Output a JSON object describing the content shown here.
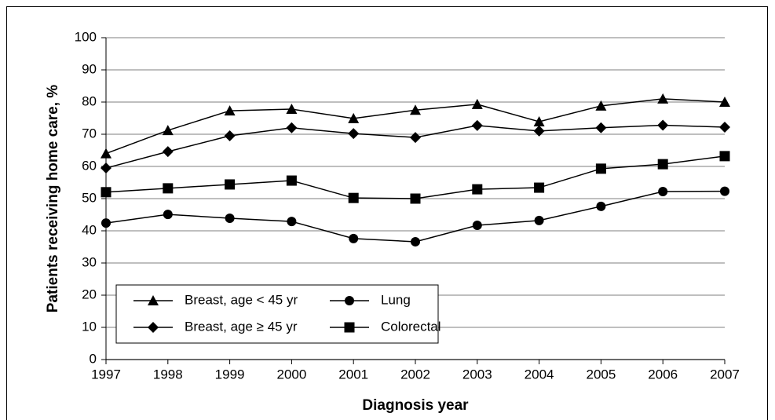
{
  "chart_data": {
    "type": "line",
    "xlabel": "Diagnosis year",
    "ylabel": "Patients receiving home care, %",
    "categories": [
      "1997",
      "1998",
      "1999",
      "2000",
      "2001",
      "2002",
      "2003",
      "2004",
      "2005",
      "2006",
      "2007"
    ],
    "series": [
      {
        "name": "Breast, age < 45 yr",
        "color": "#000000",
        "marker": "triangle",
        "values": [
          64,
          71.2,
          77.3,
          77.8,
          74.9,
          77.5,
          79.3,
          73.9,
          78.8,
          81,
          80
        ]
      },
      {
        "name": "Lung",
        "color": "#000000",
        "marker": "circle",
        "values": [
          42.4,
          45.1,
          43.9,
          42.9,
          37.6,
          36.6,
          41.7,
          43.2,
          47.6,
          52.2,
          52.3
        ]
      },
      {
        "name": "Breast, age ≥ 45 yr",
        "color": "#000000",
        "marker": "diamond",
        "values": [
          59.5,
          64.6,
          69.5,
          72,
          70.2,
          69,
          72.7,
          71,
          72,
          72.8,
          72.2
        ]
      },
      {
        "name": "Colorectal",
        "color": "#000000",
        "marker": "square",
        "values": [
          52,
          53.2,
          54.4,
          55.6,
          50.2,
          50,
          52.9,
          53.4,
          59.3,
          60.7,
          63.2
        ]
      }
    ],
    "ylim": [
      0,
      100
    ],
    "yticks": [
      0,
      10,
      20,
      30,
      40,
      50,
      60,
      70,
      80,
      90,
      100
    ],
    "grid": true,
    "legend": "lower left"
  }
}
